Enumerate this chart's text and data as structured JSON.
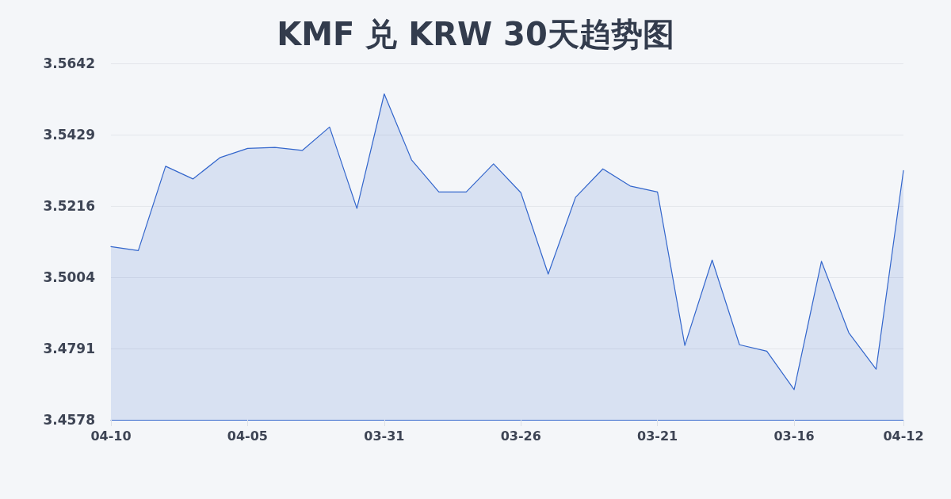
{
  "chart_data": {
    "type": "area",
    "title": "KMF 兑 KRW 30天趋势图",
    "categories": [
      "04-10",
      null,
      null,
      null,
      null,
      "04-05",
      null,
      null,
      null,
      null,
      "03-31",
      null,
      null,
      null,
      null,
      "03-26",
      null,
      null,
      null,
      null,
      "03-21",
      null,
      null,
      null,
      null,
      "03-16",
      null,
      null,
      null,
      "04-12"
    ],
    "series": [
      {
        "color": "#3366cc",
        "values": [
          3.5095,
          3.5083,
          3.5335,
          3.5297,
          3.5361,
          3.5388,
          3.5391,
          3.5382,
          3.5452,
          3.5209,
          3.5551,
          3.5354,
          3.5258,
          3.5258,
          3.5342,
          3.5256,
          3.5013,
          3.5242,
          3.5327,
          3.5276,
          3.5258,
          3.48,
          3.5055,
          3.4802,
          3.4783,
          3.4668,
          3.5051,
          3.4838,
          3.4729,
          3.5322
        ]
      }
    ],
    "ylim": [
      3.4578,
      3.5642
    ],
    "yticks": [
      3.4578,
      3.4791,
      3.5004,
      3.5216,
      3.5429,
      3.5642
    ],
    "grid": "y",
    "marker": "none",
    "line_style": "solid"
  }
}
